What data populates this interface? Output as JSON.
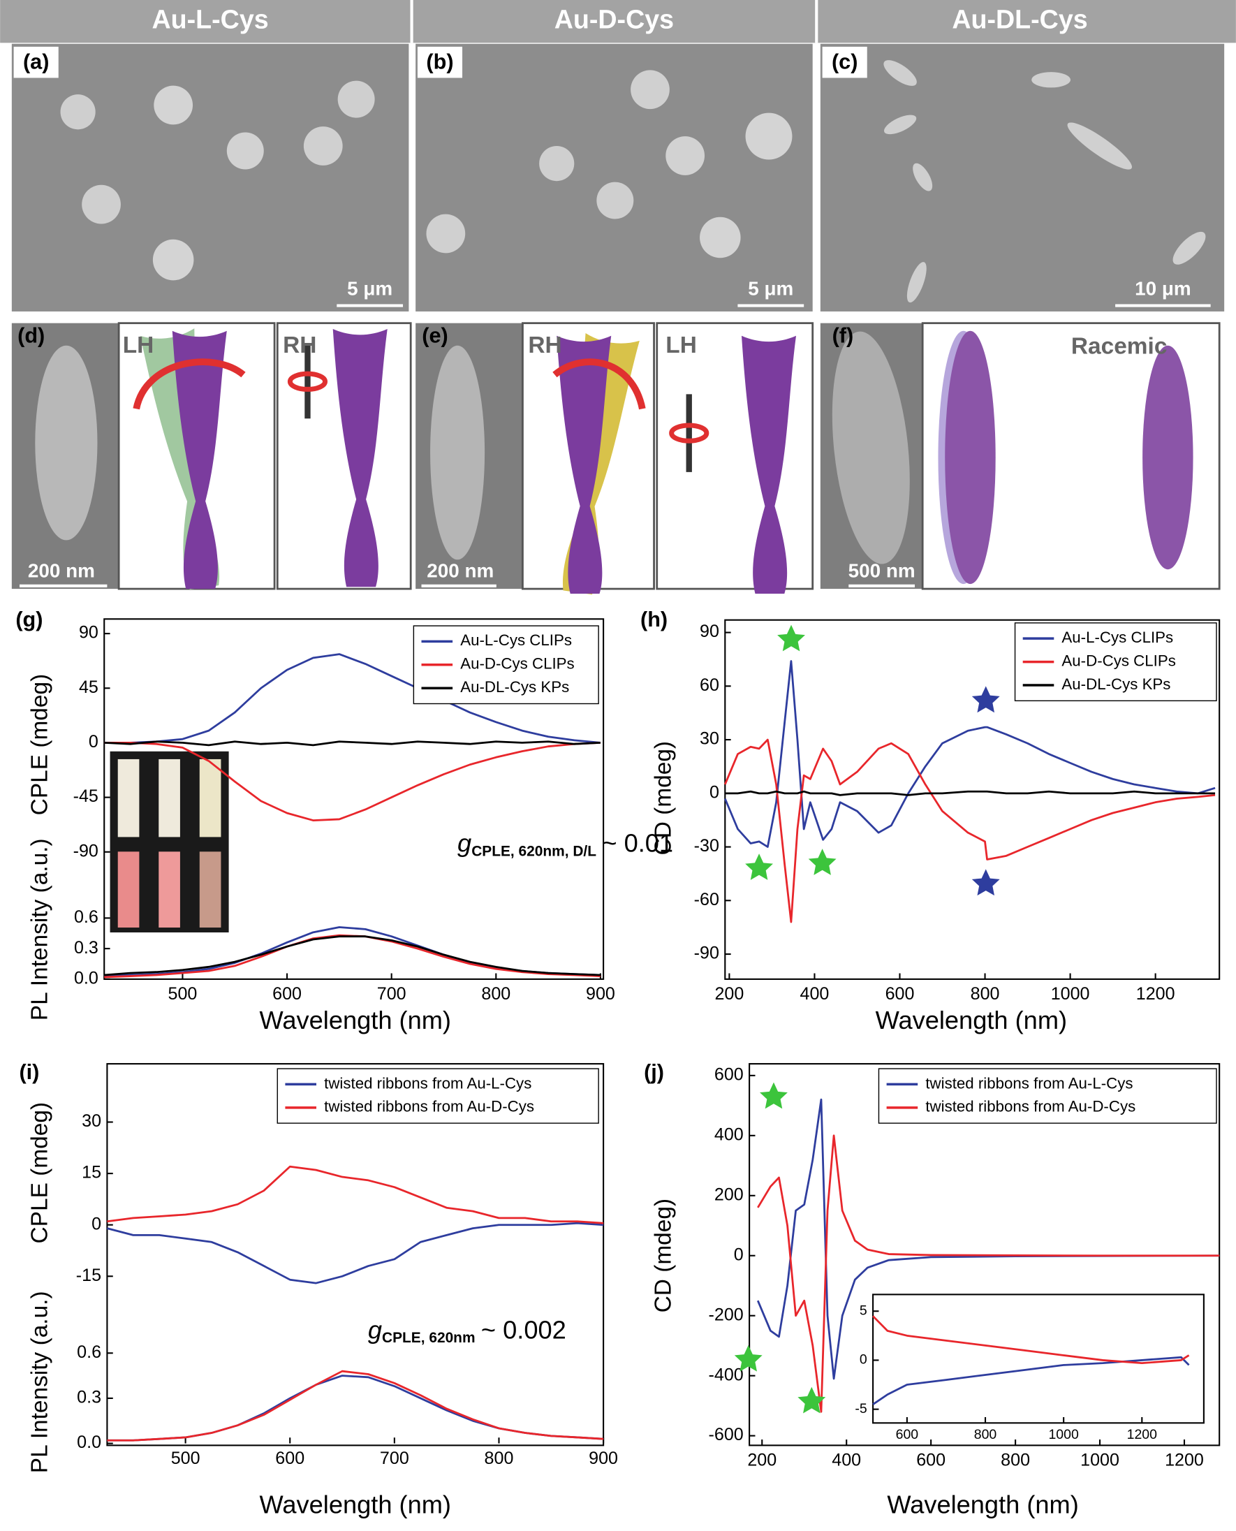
{
  "headers": [
    "Au-L-Cys",
    "Au-D-Cys",
    "Au-DL-Cys"
  ],
  "sem_panels": [
    {
      "label": "(a)",
      "scale_bar": "5 μm"
    },
    {
      "label": "(b)",
      "scale_bar": "5 μm"
    },
    {
      "label": "(c)",
      "scale_bar": "10 μm"
    }
  ],
  "model_panels": [
    {
      "label": "(d)",
      "scale_bar": "200 nm",
      "views": [
        "LH",
        "RH"
      ]
    },
    {
      "label": "(e)",
      "scale_bar": "200 nm",
      "views": [
        "RH",
        "LH"
      ]
    },
    {
      "label": "(f)",
      "scale_bar": "500 nm",
      "views": [
        "Racemic"
      ]
    }
  ],
  "chart_panel_labels": [
    "(g)",
    "(h)",
    "(i)",
    "(j)"
  ],
  "chart_data": [
    {
      "type": "line",
      "y_label": "CPLE (mdeg)",
      "legend": "upper right",
      "xlim": [
        425,
        900
      ],
      "ylim": [
        -105,
        102
      ],
      "yticks": [
        -90,
        -45,
        0,
        45,
        90
      ],
      "x": [
        425,
        450,
        475,
        500,
        525,
        550,
        575,
        600,
        625,
        650,
        675,
        700,
        725,
        750,
        775,
        800,
        825,
        850,
        875,
        900
      ],
      "series": [
        {
          "name": "Au-L-Cys CLIPs",
          "color": "#2e3d9e",
          "values": [
            0,
            0,
            1,
            3,
            10,
            25,
            45,
            60,
            70,
            73,
            65,
            55,
            45,
            35,
            25,
            17,
            10,
            5,
            2,
            0
          ]
        },
        {
          "name": "Au-D-Cys CLIPs",
          "color": "#e8262b",
          "values": [
            0,
            0,
            -1,
            -4,
            -15,
            -32,
            -48,
            -58,
            -64,
            -63,
            -55,
            -45,
            -35,
            -26,
            -18,
            -12,
            -7,
            -3,
            -1,
            0
          ]
        },
        {
          "name": "Au-DL-Cys KPs",
          "color": "#000000",
          "values": [
            0,
            -1,
            1,
            0,
            -2,
            1,
            -1,
            0,
            -2,
            1,
            0,
            -1,
            1,
            0,
            -1,
            1,
            0,
            1,
            -1,
            0
          ]
        }
      ],
      "annotation": {
        "symbol": "g",
        "subscript": "CPLE, 620nm, D/L",
        "text": "~ 0.01"
      }
    },
    {
      "type": "line",
      "y_label": "PL Intensity (a.u.)",
      "x_label": "Wavelength (nm)",
      "xlim": [
        425,
        900
      ],
      "xticks": [
        500,
        600,
        700,
        800,
        900
      ],
      "ylim": [
        0,
        0.65
      ],
      "yticks": [
        {
          "value": 0,
          "label": "0.0"
        },
        0.3,
        0.6
      ],
      "x": [
        425,
        450,
        475,
        500,
        525,
        550,
        575,
        600,
        625,
        650,
        675,
        700,
        725,
        750,
        775,
        800,
        825,
        850,
        875,
        900
      ],
      "series": [
        {
          "color": "#2e3d9e",
          "values": [
            0.03,
            0.04,
            0.05,
            0.07,
            0.1,
            0.16,
            0.25,
            0.36,
            0.46,
            0.51,
            0.49,
            0.42,
            0.33,
            0.24,
            0.16,
            0.11,
            0.08,
            0.06,
            0.05,
            0.04
          ]
        },
        {
          "color": "#e8262b",
          "values": [
            0.02,
            0.03,
            0.04,
            0.06,
            0.08,
            0.13,
            0.22,
            0.32,
            0.4,
            0.43,
            0.42,
            0.37,
            0.3,
            0.22,
            0.15,
            0.1,
            0.07,
            0.05,
            0.04,
            0.03
          ]
        },
        {
          "color": "#000000",
          "values": [
            0.04,
            0.06,
            0.07,
            0.09,
            0.12,
            0.17,
            0.24,
            0.32,
            0.39,
            0.42,
            0.42,
            0.38,
            0.32,
            0.24,
            0.17,
            0.12,
            0.08,
            0.06,
            0.05,
            0.04
          ]
        }
      ]
    },
    {
      "type": "line",
      "y_label": "CD (mdeg)",
      "x_label": "Wavelength (nm)",
      "legend": "upper right",
      "xlim": [
        190,
        1350
      ],
      "xticks": [
        200,
        400,
        600,
        800,
        1000,
        1200
      ],
      "ylim": [
        -104,
        97
      ],
      "yticks": [
        -90,
        -60,
        -30,
        0,
        30,
        60,
        90
      ],
      "x": [
        190,
        220,
        250,
        270,
        290,
        310,
        330,
        345,
        360,
        375,
        390,
        420,
        440,
        460,
        500,
        550,
        580,
        620,
        660,
        700,
        760,
        800,
        805,
        850,
        900,
        950,
        1000,
        1050,
        1100,
        1150,
        1200,
        1250,
        1300,
        1340
      ],
      "series": [
        {
          "name": "Au-L-Cys CLIPs",
          "color": "#2e3d9e",
          "values": [
            -3,
            -20,
            -28,
            -27,
            -30,
            -5,
            40,
            74,
            30,
            -20,
            -5,
            -26,
            -20,
            -5,
            -10,
            -22,
            -18,
            0,
            15,
            28,
            35,
            37,
            37,
            33,
            28,
            22,
            17,
            12,
            8,
            5,
            3,
            1,
            0,
            3
          ]
        },
        {
          "name": "Au-D-Cys CLIPs",
          "color": "#e8262b",
          "values": [
            5,
            22,
            26,
            25,
            30,
            5,
            -40,
            -72,
            -20,
            10,
            8,
            25,
            18,
            5,
            12,
            25,
            28,
            22,
            5,
            -10,
            -22,
            -27,
            -37,
            -35,
            -30,
            -25,
            -20,
            -15,
            -11,
            -8,
            -5,
            -3,
            -2,
            -1
          ]
        },
        {
          "name": "Au-DL-Cys KPs",
          "color": "#000000",
          "values": [
            0,
            0,
            1,
            0,
            0,
            1,
            0,
            0,
            0,
            1,
            0,
            0,
            0,
            -1,
            0,
            0,
            0,
            -1,
            0,
            0,
            1,
            1,
            1,
            0,
            0,
            1,
            0,
            0,
            0,
            1,
            0,
            0,
            0,
            0
          ]
        }
      ]
    },
    {
      "type": "line",
      "y_label": "CPLE (mdeg)",
      "legend": "upper right",
      "xlim": [
        425,
        900
      ],
      "ylim": [
        -26,
        47
      ],
      "yticks": [
        -15,
        0,
        15,
        30
      ],
      "x": [
        425,
        450,
        475,
        500,
        525,
        550,
        575,
        600,
        625,
        650,
        675,
        700,
        725,
        750,
        775,
        800,
        825,
        850,
        875,
        900
      ],
      "series": [
        {
          "name": "twisted ribbons from Au-L-Cys",
          "color": "#2e3d9e",
          "values": [
            -1,
            -3,
            -3,
            -4,
            -5,
            -8,
            -12,
            -16,
            -17,
            -15,
            -12,
            -10,
            -5,
            -3,
            -1,
            0,
            0,
            0,
            0.5,
            0
          ]
        },
        {
          "name": "twisted ribbons from Au-D-Cys",
          "color": "#e8262b",
          "values": [
            1,
            2,
            2.5,
            3,
            4,
            6,
            10,
            17,
            16,
            14,
            13,
            11,
            8,
            5,
            4,
            2,
            2,
            1,
            1,
            0.5
          ]
        }
      ],
      "annotation": {
        "symbol": "g",
        "subscript": "CPLE, 620nm",
        "text": "~ 0.002"
      }
    },
    {
      "type": "line",
      "y_label": "PL Intensity (a.u.)",
      "x_label": "Wavelength (nm)",
      "xlim": [
        425,
        900
      ],
      "xticks": [
        500,
        600,
        700,
        800,
        900
      ],
      "ylim": [
        0,
        0.86
      ],
      "yticks": [
        {
          "value": 0,
          "label": "0.0"
        },
        0.3,
        0.6
      ],
      "x": [
        425,
        450,
        475,
        500,
        525,
        550,
        575,
        600,
        625,
        650,
        675,
        700,
        725,
        750,
        775,
        800,
        825,
        850,
        875,
        900
      ],
      "series": [
        {
          "color": "#2e3d9e",
          "values": [
            0.02,
            0.02,
            0.03,
            0.04,
            0.07,
            0.12,
            0.2,
            0.3,
            0.39,
            0.45,
            0.44,
            0.38,
            0.3,
            0.22,
            0.15,
            0.1,
            0.07,
            0.05,
            0.04,
            0.03
          ]
        },
        {
          "color": "#e8262b",
          "values": [
            0.02,
            0.02,
            0.03,
            0.04,
            0.07,
            0.12,
            0.19,
            0.29,
            0.39,
            0.48,
            0.46,
            0.4,
            0.32,
            0.23,
            0.16,
            0.1,
            0.07,
            0.05,
            0.04,
            0.03
          ]
        }
      ]
    },
    {
      "type": "line",
      "y_label": "CD (mdeg)",
      "x_label": "Wavelength (nm)",
      "legend": "upper right",
      "xlim": [
        170,
        1283
      ],
      "xticks": [
        200,
        400,
        600,
        800,
        1000,
        1200
      ],
      "ylim": [
        -632,
        639
      ],
      "yticks": [
        -600,
        -400,
        -200,
        0,
        200,
        400,
        600
      ],
      "x": [
        190,
        220,
        240,
        260,
        280,
        300,
        320,
        340,
        355,
        370,
        390,
        420,
        450,
        500,
        600,
        800,
        1000,
        1283
      ],
      "series": [
        {
          "name": "twisted ribbons from Au-L-Cys",
          "color": "#2e3d9e",
          "values": [
            -150,
            -250,
            -270,
            -100,
            150,
            170,
            320,
            520,
            -200,
            -410,
            -200,
            -80,
            -40,
            -15,
            -5,
            -2,
            -1,
            0
          ]
        },
        {
          "name": "twisted ribbons from Au-D-Cys",
          "color": "#e8262b",
          "values": [
            160,
            230,
            260,
            100,
            -200,
            -150,
            -300,
            -520,
            150,
            400,
            150,
            50,
            20,
            5,
            2,
            1,
            0,
            0
          ]
        }
      ]
    },
    {
      "type": "line",
      "xlim": [
        513,
        1358
      ],
      "xticks": [
        600,
        800,
        1000,
        1200
      ],
      "ylim": [
        -6.4,
        6.7
      ],
      "yticks": [
        -5,
        0,
        5
      ],
      "x": [
        513,
        550,
        600,
        700,
        800,
        900,
        1000,
        1100,
        1200,
        1300,
        1320
      ],
      "series": [
        {
          "color": "#2e3d9e",
          "values": [
            -4.5,
            -3.5,
            -2.5,
            -2,
            -1.5,
            -1,
            -0.5,
            -0.3,
            0,
            0.3,
            -0.5
          ]
        },
        {
          "color": "#e8262b",
          "values": [
            4.5,
            3,
            2.5,
            2,
            1.5,
            1,
            0.5,
            0,
            -0.3,
            0,
            0.5
          ]
        }
      ]
    }
  ]
}
